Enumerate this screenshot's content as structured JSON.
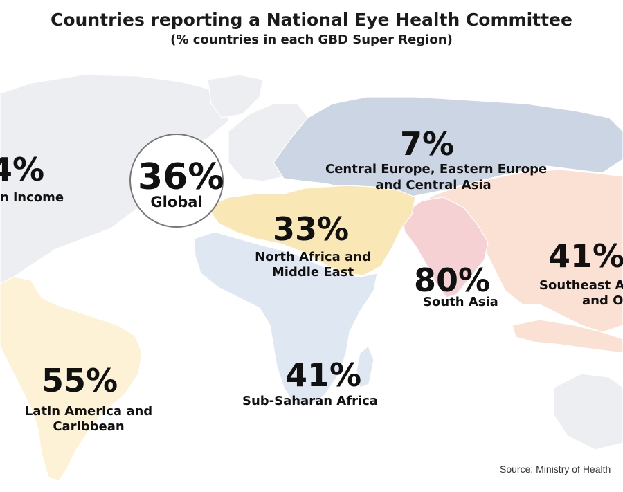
{
  "header": {
    "title": "Countries reporting a National Eye Health Committee",
    "subtitle": "(% countries in each GBD Super Region)"
  },
  "colors": {
    "high_income": "#eceef1",
    "central_europe": "#ccd5e4",
    "north_africa": "#f9e7b6",
    "south_asia": "#f6d1d3",
    "southeast_asia": "#fbe1d3",
    "sub_saharan": "#dfe7f3",
    "latin_america": "#fdf1d6"
  },
  "regions": {
    "high_income": {
      "value": "4%",
      "label": "n income"
    },
    "global": {
      "value": "36%",
      "label": "Global"
    },
    "central_europe": {
      "value": "7%",
      "label_line1": "Central Europe, Eastern Europe",
      "label_line2": "and Central Asia"
    },
    "north_africa": {
      "value": "33%",
      "label_line1": "North Africa and",
      "label_line2": "Middle East"
    },
    "south_asia": {
      "value": "80%",
      "label": "South Asia"
    },
    "southeast_asia": {
      "value": "41%",
      "label_line1": "Southeast A",
      "label_line2": "and O"
    },
    "sub_saharan": {
      "value": "41%",
      "label": "Sub-Saharan Africa"
    },
    "latin_america": {
      "value": "55%",
      "label_line1": "Latin America and",
      "label_line2": "Caribbean"
    }
  },
  "footer": {
    "source": "Source: Ministry of Health"
  }
}
